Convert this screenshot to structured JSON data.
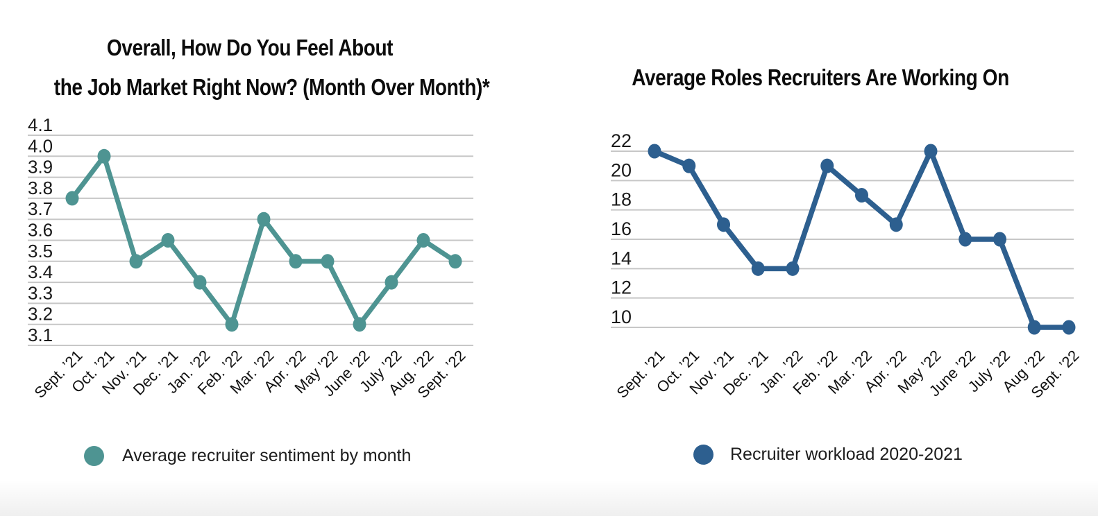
{
  "page": {
    "background": "#ffffff",
    "grid_color": "#c7c7c7",
    "axis_label_color": "#1a1a1a",
    "title_color": "#0c0c0c"
  },
  "chart_data": [
    {
      "type": "line",
      "title": "Overall, How Do You Feel About the Job Market Right Now? (Month Over Month)*",
      "title_lines": [
        "Overall, How Do You Feel About",
        "the Job Market Right Now? (Month Over Month)*"
      ],
      "categories": [
        "Sept. ’21",
        "Oct. ’21",
        "Nov. ’21",
        "Dec. ’21",
        "Jan. ’22",
        "Feb. ’22",
        "Mar. ’22",
        "Apr. ’22",
        "May ’22",
        "June ’22",
        "July ’22",
        "Aug. ’22",
        "Sept. ’22"
      ],
      "series": [
        {
          "name": "Average recruiter sentiment by month",
          "color": "#4e9492",
          "values": [
            3.8,
            4.0,
            3.5,
            3.6,
            3.4,
            3.2,
            3.7,
            3.5,
            3.5,
            3.2,
            3.4,
            3.6,
            3.5
          ]
        }
      ],
      "ylim": [
        3.1,
        4.1
      ],
      "yticks": [
        "4.1",
        "4.0",
        "3.9",
        "3.8",
        "3.7",
        "3.6",
        "3.5",
        "3.4",
        "3.3",
        "3.2",
        "3.1"
      ],
      "grid": true,
      "legend_position": "bottom",
      "xlabel": "",
      "ylabel": ""
    },
    {
      "type": "line",
      "title": "Average Roles Recruiters Are Working On",
      "title_lines": [
        "Average Roles Recruiters Are Working On"
      ],
      "categories": [
        "Sept. ’21",
        "Oct. ’21",
        "Nov. ’21",
        "Dec. ’21",
        "Jan. ’22",
        "Feb. ’22",
        "Mar. ’22",
        "Apr. ’22",
        "May ’22",
        "June ’22",
        "July ’22",
        "Aug ’22",
        "Sept. ’22"
      ],
      "series": [
        {
          "name": "Recruiter workload 2020-2021",
          "color": "#2d5f8f",
          "values": [
            22,
            21,
            17,
            14,
            14,
            21,
            19,
            17,
            22,
            16,
            16,
            10,
            10
          ]
        }
      ],
      "ylim": [
        10,
        22
      ],
      "yticks": [
        "22",
        "20",
        "18",
        "16",
        "14",
        "12",
        "10"
      ],
      "grid": true,
      "legend_position": "bottom",
      "xlabel": "",
      "ylabel": ""
    }
  ]
}
